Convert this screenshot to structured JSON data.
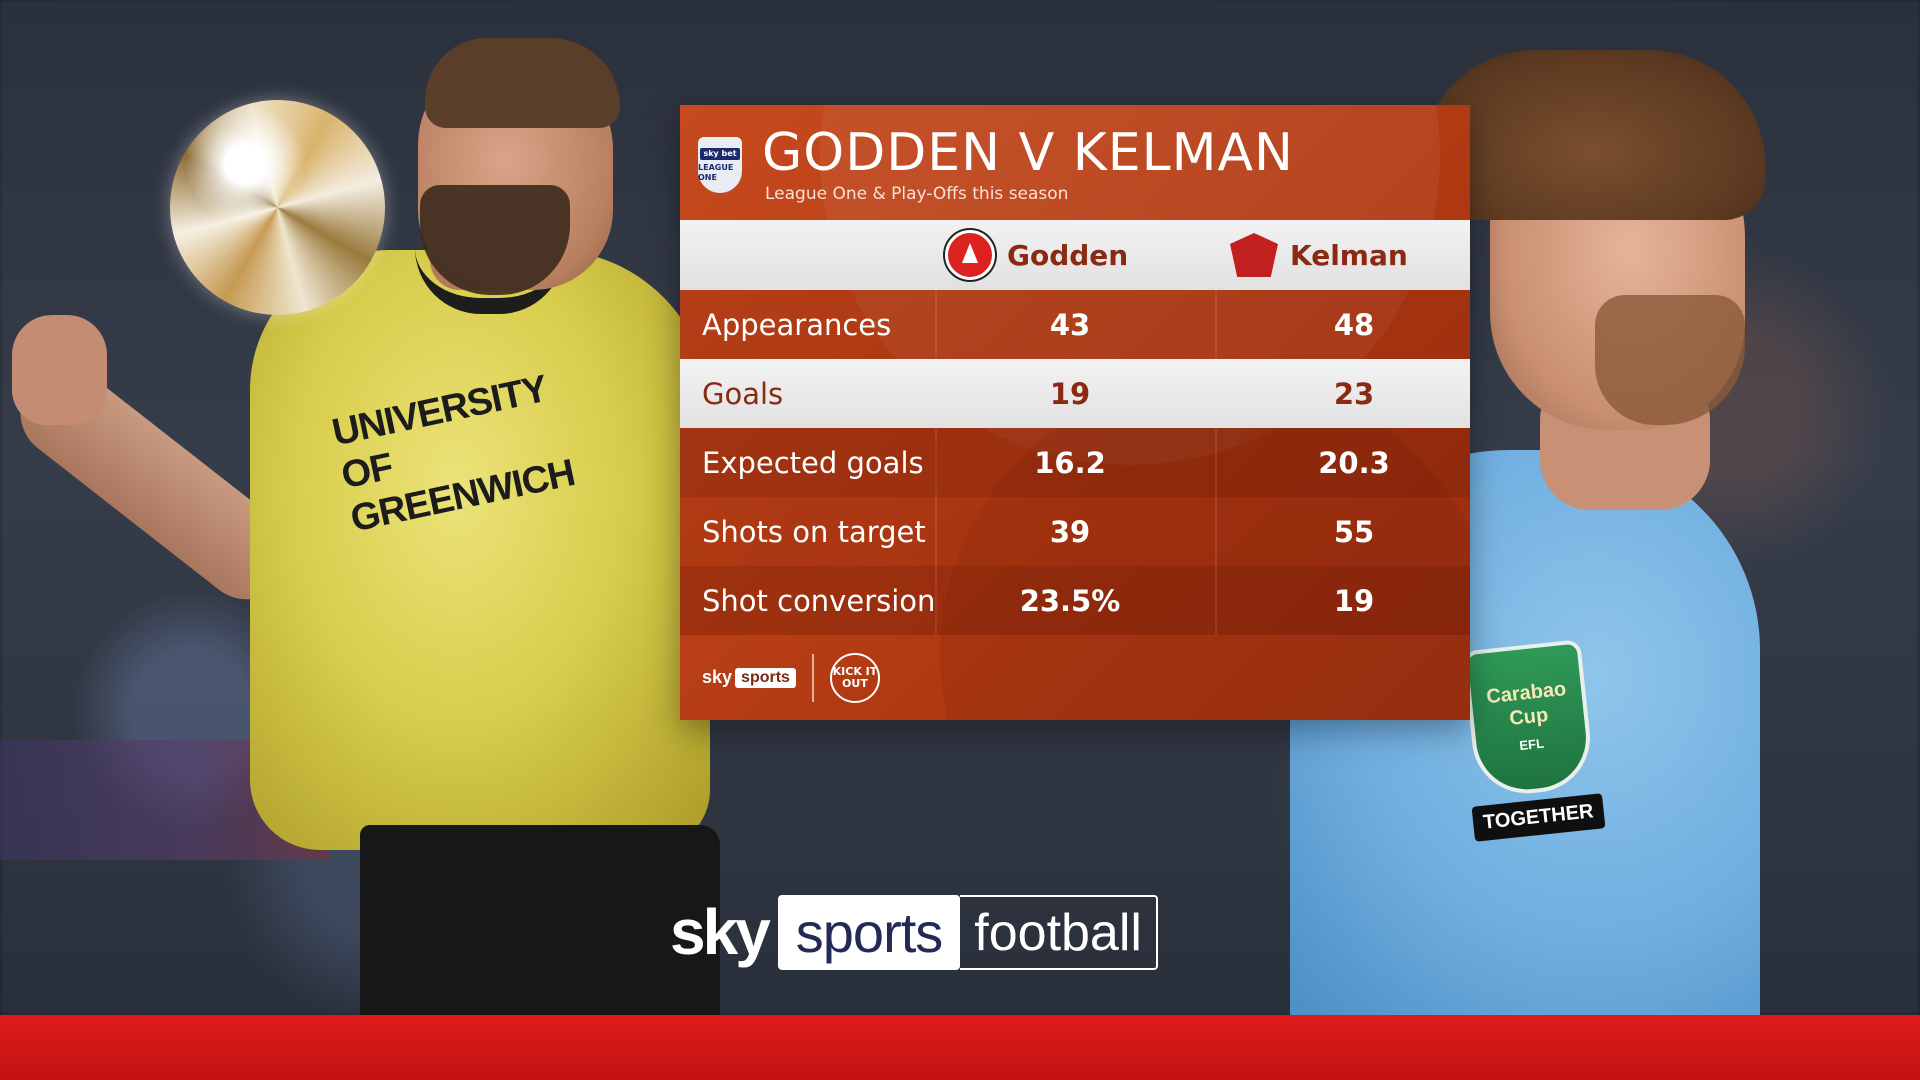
{
  "card": {
    "title": "GODDEN V KELMAN",
    "subtitle": "League One & Play-Offs this season",
    "league_badge": {
      "top": "sky bet",
      "bottom": "LEAGUE ONE"
    },
    "players": [
      {
        "name": "Godden",
        "crest": "charlton-athletic-crest"
      },
      {
        "name": "Kelman",
        "crest": "leyton-orient-crest"
      }
    ],
    "stats": [
      {
        "label": "Appearances",
        "godden": "43",
        "kelman": "48"
      },
      {
        "label": "Goals",
        "godden": "19",
        "kelman": "23"
      },
      {
        "label": "Expected goals",
        "godden": "16.2",
        "kelman": "20.3"
      },
      {
        "label": "Shots on target",
        "godden": "39",
        "kelman": "55"
      },
      {
        "label": "Shot conversion",
        "godden": "23.5%",
        "kelman": "19"
      }
    ],
    "footer": {
      "sky": "sky",
      "sports": "sports",
      "kick_it_out": "KICK IT OUT"
    }
  },
  "left_player": {
    "sponsor": "UNIVERSITY OF GREENWICH"
  },
  "right_player": {
    "badge": "Carabao Cup",
    "badge_sub": "EFL",
    "sleeve": "TOGETHER"
  },
  "brand": {
    "sky": "sky",
    "sports": "sports",
    "football": "football"
  },
  "colors": {
    "card": "#b23a13",
    "bottom_bar": "#d41616",
    "kit_left": "#d8cd4c",
    "kit_right": "#6faee0"
  }
}
